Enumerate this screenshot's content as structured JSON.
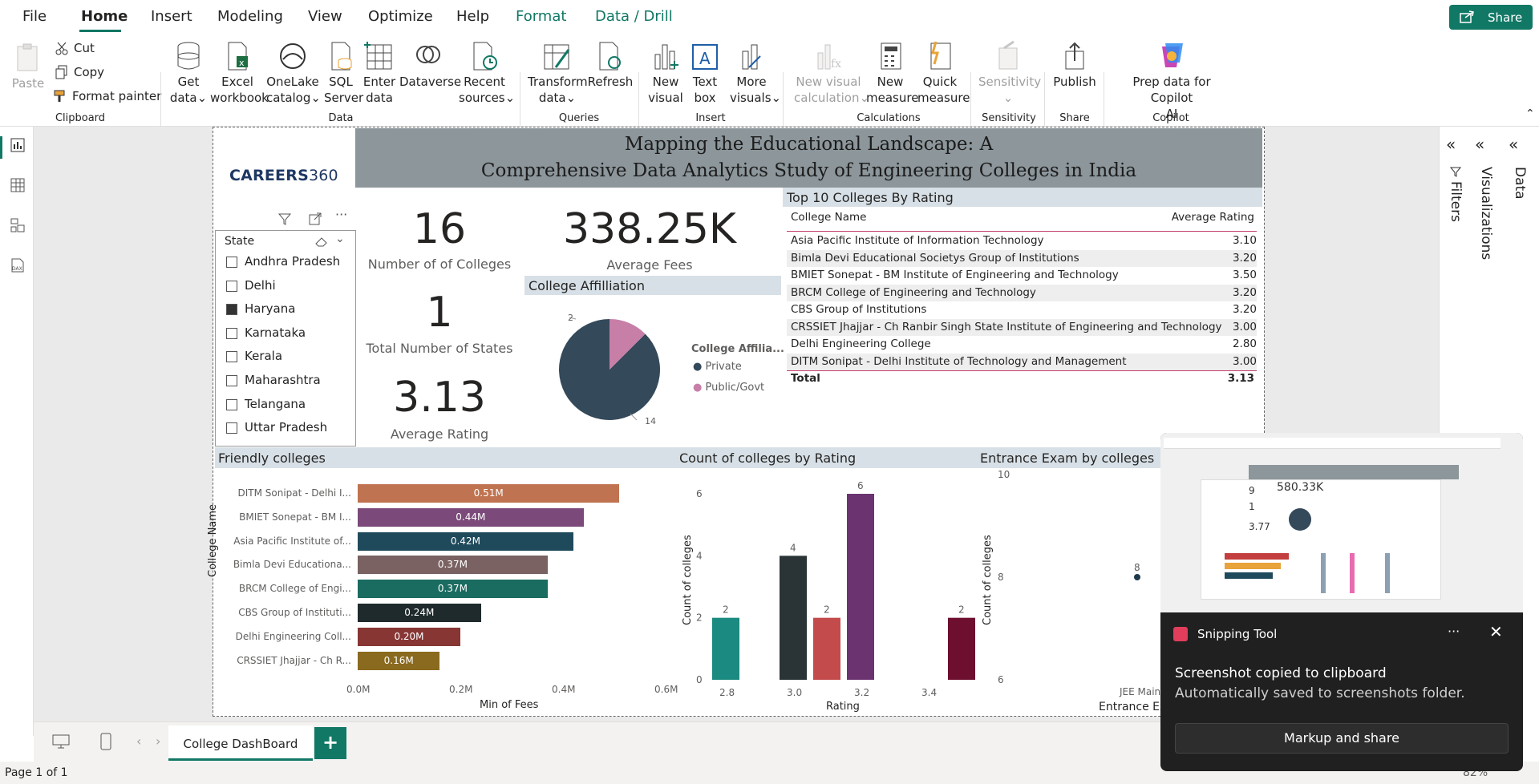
{
  "menubar": {
    "items": [
      "File",
      "Home",
      "Insert",
      "Modeling",
      "View",
      "Optimize",
      "Help",
      "Format",
      "Data / Drill"
    ],
    "share_label": "Share"
  },
  "ribbon": {
    "clipboard": {
      "paste": "Paste",
      "cut": "Cut",
      "copy": "Copy",
      "format_painter": "Format painter",
      "group": "Clipboard"
    },
    "data": {
      "get_data_1": "Get",
      "get_data_2": "data",
      "excel_1": "Excel",
      "excel_2": "workbook",
      "onelake_1": "OneLake",
      "onelake_2": "catalog",
      "sql_1": "SQL",
      "sql_2": "Server",
      "enter_1": "Enter",
      "enter_2": "data",
      "dataverse": "Dataverse",
      "recent_1": "Recent",
      "recent_2": "sources",
      "group": "Data"
    },
    "queries": {
      "transform_1": "Transform",
      "transform_2": "data",
      "refresh": "Refresh",
      "group": "Queries"
    },
    "insert": {
      "new_visual_1": "New",
      "new_visual_2": "visual",
      "text_box_1": "Text",
      "text_box_2": "box",
      "more_1": "More",
      "more_2": "visuals",
      "group": "Insert"
    },
    "calculations": {
      "new_calc_1": "New visual",
      "new_calc_2": "calculation",
      "new_measure_1": "New",
      "new_measure_2": "measure",
      "quick_1": "Quick",
      "quick_2": "measure",
      "group": "Calculations"
    },
    "sensitivity": {
      "label": "Sensitivity",
      "group": "Sensitivity"
    },
    "share": {
      "publish": "Publish",
      "group": "Share"
    },
    "copilot": {
      "prep_1": "Prep data for Copilot",
      "prep_2": "AI",
      "group": "Copilot"
    }
  },
  "report": {
    "title_line1": "Mapping the Educational Landscape: A",
    "title_line2": "Comprehensive Data Analytics Study of Engineering Colleges in India",
    "logo_bold": "CAREERS",
    "logo_light": "360",
    "slicer": {
      "header": "State",
      "items": [
        {
          "label": "Andhra Pradesh",
          "checked": false
        },
        {
          "label": "Delhi",
          "checked": false
        },
        {
          "label": "Haryana",
          "checked": true
        },
        {
          "label": "Karnataka",
          "checked": false
        },
        {
          "label": "Kerala",
          "checked": false
        },
        {
          "label": "Maharashtra",
          "checked": false
        },
        {
          "label": "Telangana",
          "checked": false
        },
        {
          "label": "Uttar Pradesh",
          "checked": false
        }
      ]
    },
    "kpis": {
      "colleges_value": "16",
      "colleges_label": "Number of of Colleges",
      "states_value": "1",
      "states_label": "Total Number of States",
      "rating_value": "3.13",
      "rating_label": "Average Rating",
      "fees_value": "338.25K",
      "fees_label": "Average Fees"
    },
    "affiliation": {
      "title": "College Affilliation",
      "legend_title": "College Affilia...",
      "legend": [
        {
          "label": "Private",
          "color": "#34495a"
        },
        {
          "label": "Public/Govt",
          "color": "#c77fa8"
        }
      ],
      "private_count": "14",
      "public_count": "2"
    },
    "top10": {
      "title": "Top 10 Colleges By Rating",
      "col_name": "College Name",
      "col_rating": "Average Rating",
      "rows": [
        {
          "name": "Asia Pacific Institute of Information Technology",
          "rating": "3.10"
        },
        {
          "name": "Bimla Devi Educational Societys Group of Institutions",
          "rating": "3.20"
        },
        {
          "name": "BMIET Sonepat - BM Institute of Engineering and Technology",
          "rating": "3.50"
        },
        {
          "name": "BRCM College of Engineering and Technology",
          "rating": "3.20"
        },
        {
          "name": "CBS Group of Institutions",
          "rating": "3.20"
        },
        {
          "name": "CRSSIET Jhajjar - Ch Ranbir Singh State Institute of Engineering and Technology",
          "rating": "3.00"
        },
        {
          "name": "Delhi Engineering College",
          "rating": "2.80"
        },
        {
          "name": "DITM Sonipat - Delhi Institute of Technology and Management",
          "rating": "3.00"
        }
      ],
      "total_label": "Total",
      "total_value": "3.13"
    },
    "friendly": {
      "title": "Friendly colleges",
      "y_title": "College Name",
      "x_title": "Min of Fees",
      "x_ticks": [
        "0.0M",
        "0.2M",
        "0.4M",
        "0.6M"
      ]
    },
    "rating_chart": {
      "title": "Count of colleges by Rating",
      "y_title": "Count of colleges",
      "x_title": "Rating",
      "x_ticks": [
        "2.8",
        "3.0",
        "3.2",
        "3.4"
      ],
      "y_ticks": [
        "0",
        "2",
        "4",
        "6"
      ]
    },
    "exam_chart": {
      "title": "Entrance Exam by colleges",
      "y_title": "Count of colleges",
      "x_title": "Entrance Ex",
      "x_tick": "JEE Main",
      "y_ticks": [
        "10",
        "8",
        "6"
      ],
      "point_label": "8"
    }
  },
  "chart_data": [
    {
      "type": "bar",
      "title": "Friendly colleges",
      "xlabel": "Min of Fees",
      "ylabel": "College Name",
      "categories": [
        "DITM Sonipat - Delhi I...",
        "BMIET Sonepat - BM I...",
        "Asia Pacific Institute of...",
        "Bimla Devi Educationa...",
        "BRCM College of Engi...",
        "CBS Group of Instituti...",
        "Delhi Engineering Coll...",
        "CRSSIET Jhajjar - Ch R..."
      ],
      "values": [
        0.51,
        0.44,
        0.42,
        0.37,
        0.37,
        0.24,
        0.2,
        0.16
      ],
      "labels": [
        "0.51M",
        "0.44M",
        "0.42M",
        "0.37M",
        "0.37M",
        "0.24M",
        "0.20M",
        "0.16M"
      ],
      "colors": [
        "#c07350",
        "#7b4a7a",
        "#1f4a5c",
        "#7a6262",
        "#1a6b60",
        "#1f2a2c",
        "#873634",
        "#8a6a1f"
      ],
      "xlim": [
        0,
        0.6
      ]
    },
    {
      "type": "bar",
      "title": "Count of colleges by Rating",
      "xlabel": "Rating",
      "ylabel": "Count of colleges",
      "x": [
        2.8,
        3.0,
        3.1,
        3.2,
        3.5
      ],
      "values": [
        2,
        4,
        2,
        6,
        2
      ],
      "colors": [
        "#1b8a80",
        "#2a3436",
        "#c34b4b",
        "#6b3470",
        "#6e0f30"
      ],
      "ylim": [
        0,
        6
      ],
      "xlim": [
        2.75,
        3.55
      ]
    },
    {
      "type": "pie",
      "title": "College Affilliation",
      "categories": [
        "Private",
        "Public/Govt"
      ],
      "values": [
        14,
        2
      ]
    },
    {
      "type": "scatter",
      "title": "Entrance Exam by colleges",
      "xlabel": "Entrance Ex",
      "ylabel": "Count of colleges",
      "categories": [
        "JEE Main"
      ],
      "values": [
        8
      ],
      "ylim": [
        6,
        10
      ]
    }
  ],
  "snip": {
    "app": "Snipping Tool",
    "title": "Screenshot copied to clipboard",
    "subtitle": "Automatically saved to screenshots folder.",
    "button": "Markup and share",
    "more": "···"
  },
  "rightpanes": {
    "filters": "Filters",
    "visualizations": "Visualizations",
    "data": "Data"
  },
  "pages": {
    "tab": "College DashBoard",
    "add": "+"
  },
  "status": {
    "page": "Page 1 of 1",
    "zoom": "82%"
  }
}
